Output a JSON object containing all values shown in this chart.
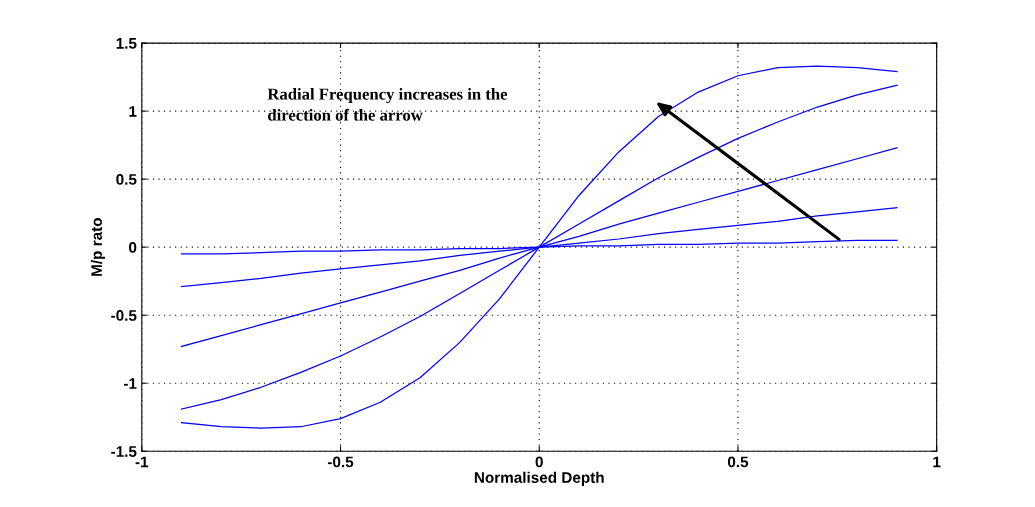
{
  "chart_data": {
    "type": "line",
    "xlabel": "Normalised Depth",
    "ylabel": "M/p rato",
    "x": [
      -0.9,
      -0.8,
      -0.7,
      -0.6,
      -0.5,
      -0.4,
      -0.3,
      -0.2,
      -0.1,
      0,
      0.1,
      0.2,
      0.3,
      0.4,
      0.5,
      0.6,
      0.7,
      0.8,
      0.9
    ],
    "series": [
      {
        "color": "#0000ff",
        "values": [
          -0.05,
          -0.05,
          -0.04,
          -0.03,
          -0.03,
          -0.02,
          -0.02,
          -0.01,
          -0.01,
          0,
          0.01,
          0.01,
          0.02,
          0.02,
          0.03,
          0.03,
          0.04,
          0.05,
          0.05
        ]
      },
      {
        "color": "#0000ff",
        "values": [
          -0.29,
          -0.26,
          -0.23,
          -0.19,
          -0.16,
          -0.13,
          -0.1,
          -0.06,
          -0.03,
          0,
          0.03,
          0.06,
          0.1,
          0.13,
          0.16,
          0.19,
          0.23,
          0.26,
          0.29
        ]
      },
      {
        "color": "#0000ff",
        "values": [
          -0.73,
          -0.65,
          -0.57,
          -0.49,
          -0.41,
          -0.33,
          -0.25,
          -0.17,
          -0.08,
          0,
          0.08,
          0.17,
          0.25,
          0.33,
          0.41,
          0.49,
          0.57,
          0.65,
          0.73
        ]
      },
      {
        "color": "#0000ff",
        "values": [
          -1.19,
          -1.12,
          -1.03,
          -0.92,
          -0.8,
          -0.66,
          -0.51,
          -0.34,
          -0.17,
          0,
          0.17,
          0.34,
          0.51,
          0.66,
          0.8,
          0.92,
          1.03,
          1.12,
          1.19
        ]
      },
      {
        "color": "#0000ff",
        "values": [
          -1.29,
          -1.32,
          -1.33,
          -1.32,
          -1.26,
          -1.14,
          -0.96,
          -0.7,
          -0.38,
          0,
          0.38,
          0.7,
          0.96,
          1.14,
          1.26,
          1.32,
          1.33,
          1.32,
          1.29
        ]
      }
    ],
    "xlim": [
      -1,
      1
    ],
    "xticks": [
      -1,
      -0.5,
      0,
      0.5,
      1
    ],
    "ylim": [
      -1.5,
      1.5
    ],
    "yticks": [
      -1.5,
      -1,
      -0.5,
      0,
      0.5,
      1,
      1.5
    ],
    "grid": true,
    "line_style": "solid",
    "annotations": [
      "Radial Frequency increases in the\ndirection of the arrow"
    ]
  }
}
